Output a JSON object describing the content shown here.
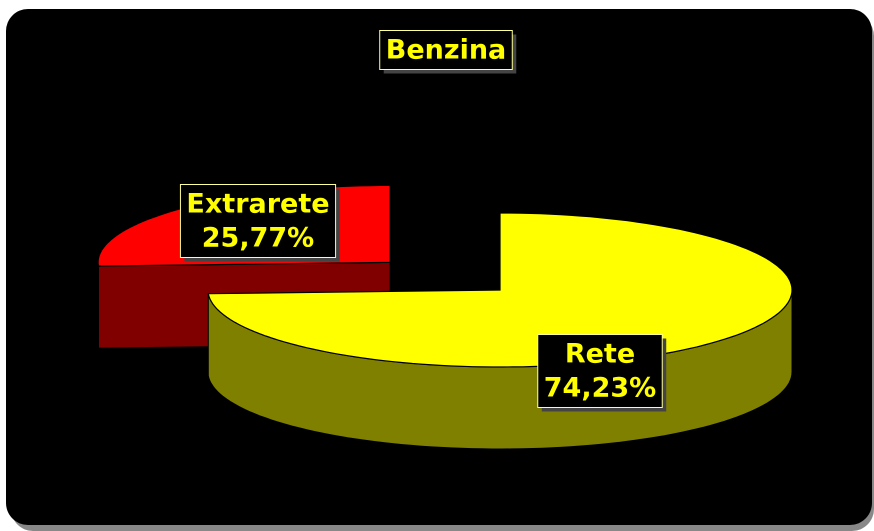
{
  "chart_data": {
    "type": "pie3d",
    "title": "Benzina",
    "categories": [
      "Rete",
      "Extrarete"
    ],
    "values": [
      74.23,
      25.77
    ],
    "value_labels": [
      "74,23%",
      "25,77%"
    ],
    "colors": [
      "#ffff00",
      "#ff0000"
    ],
    "side_colors": [
      "#808000",
      "#800000"
    ]
  }
}
